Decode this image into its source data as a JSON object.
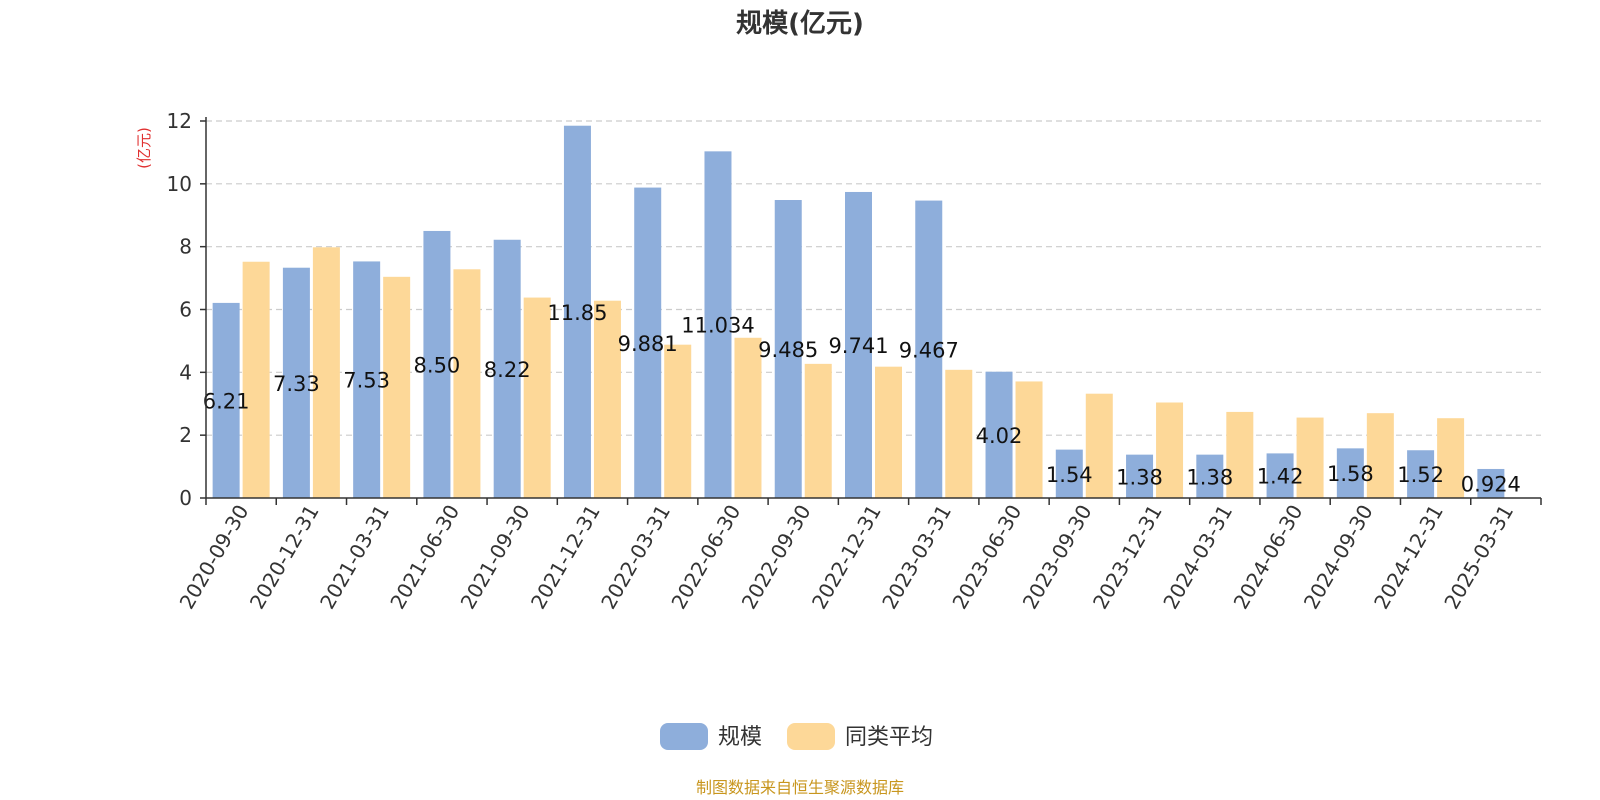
{
  "chart_data": {
    "type": "bar",
    "title": "规模(亿元)",
    "ylabel": "(亿元)",
    "ylim": [
      0,
      12
    ],
    "yticks": [
      0,
      2,
      4,
      6,
      8,
      10,
      12
    ],
    "grid": true,
    "legend_position": "bottom",
    "categories": [
      "2020-09-30",
      "2020-12-31",
      "2021-03-31",
      "2021-06-30",
      "2021-09-30",
      "2021-12-31",
      "2022-03-31",
      "2022-06-30",
      "2022-09-30",
      "2022-12-31",
      "2023-03-31",
      "2023-06-30",
      "2023-09-30",
      "2023-12-31",
      "2024-03-31",
      "2024-06-30",
      "2024-09-30",
      "2024-12-31",
      "2025-03-31"
    ],
    "series": [
      {
        "name": "规模",
        "color": "#8eaedb",
        "values": [
          6.21,
          7.33,
          7.53,
          8.5,
          8.22,
          11.85,
          9.881,
          11.034,
          9.485,
          9.741,
          9.467,
          4.02,
          1.54,
          1.38,
          1.38,
          1.42,
          1.58,
          1.52,
          0.924
        ],
        "labels": [
          "6.21",
          "7.33",
          "7.53",
          "8.50",
          "8.22",
          "11.85",
          "9.881",
          "11.034",
          "9.485",
          "9.741",
          "9.467",
          "4.02",
          "1.54",
          "1.38",
          "1.38",
          "1.42",
          "1.58",
          "1.52",
          "0.924"
        ]
      },
      {
        "name": "同类平均",
        "color": "#fdd898",
        "values": [
          7.52,
          7.98,
          7.04,
          7.28,
          6.38,
          6.28,
          4.88,
          5.1,
          4.27,
          4.18,
          4.08,
          3.71,
          3.32,
          3.04,
          2.74,
          2.56,
          2.7,
          2.54,
          null
        ]
      }
    ]
  },
  "colors": {
    "unit_label": "#e03030",
    "source": "#c8961e"
  },
  "footer": {
    "source": "制图数据来自恒生聚源数据库"
  }
}
